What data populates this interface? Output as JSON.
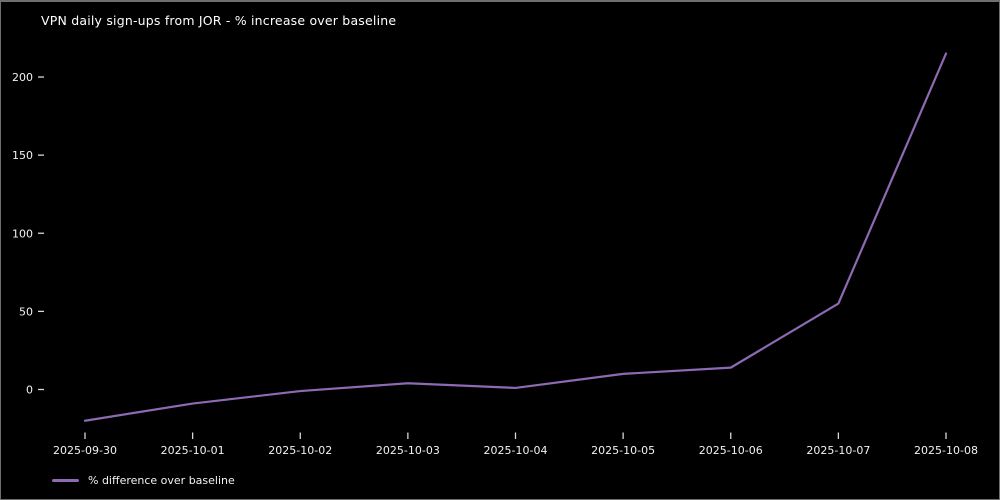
{
  "chart_data": {
    "type": "line",
    "title": "VPN daily sign-ups from JOR - % increase over baseline",
    "x": [
      "2025-09-30",
      "2025-10-01",
      "2025-10-02",
      "2025-10-03",
      "2025-10-04",
      "2025-10-05",
      "2025-10-06",
      "2025-10-07",
      "2025-10-08"
    ],
    "series": [
      {
        "name": "% difference over baseline",
        "values": [
          -20,
          -9,
          -1,
          4,
          1,
          10,
          14,
          55,
          215
        ]
      }
    ],
    "xlabel": "",
    "ylabel": "",
    "yticks": [
      0,
      50,
      100,
      150,
      200
    ],
    "ylim": [
      -28,
      222
    ],
    "grid": false,
    "legend_position": "lower-left",
    "colors": {
      "line": "#8d6ab3",
      "background": "#000000",
      "text": "#f2f2f2",
      "tick": "#d8d8d8",
      "border": "#6e6e6e"
    }
  }
}
